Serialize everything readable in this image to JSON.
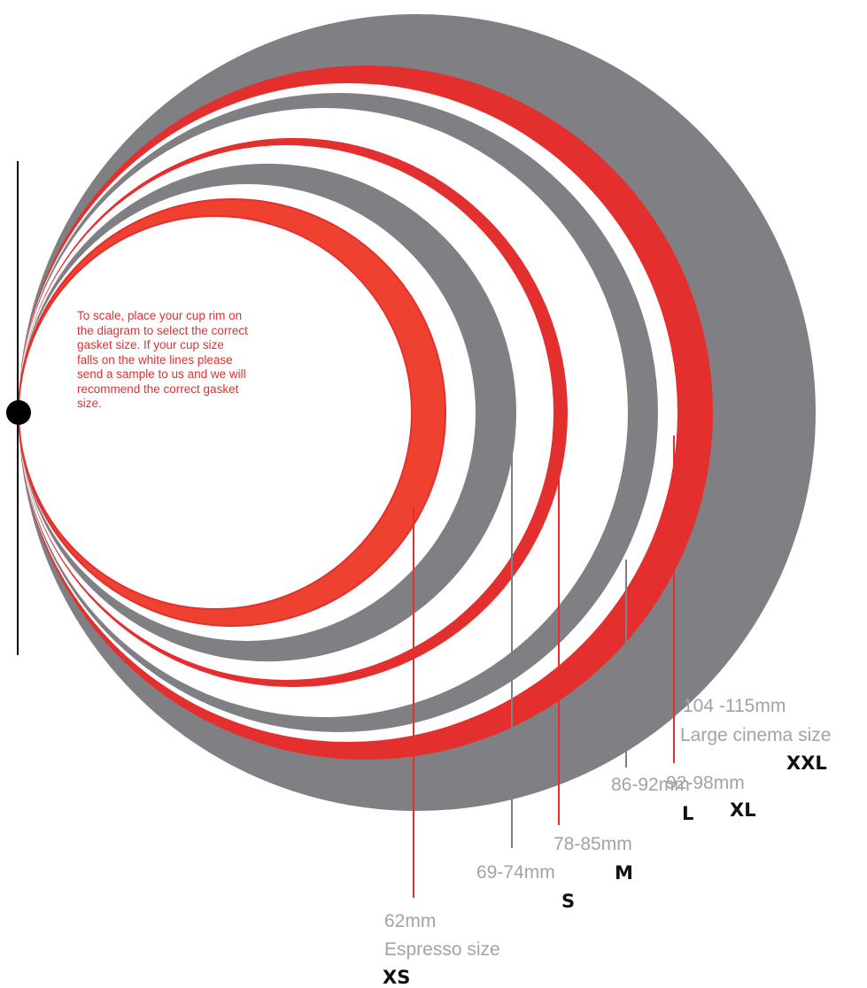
{
  "instructions": [
    "To scale, place your cup rim on",
    "the diagram to select the correct",
    "gasket size. If your cup size",
    "falls on the white lines please",
    "send a sample to us and we will",
    "recommend the correct gasket",
    "size."
  ],
  "sizes": [
    {
      "code": "XS",
      "range": "62mm",
      "description": "Espresso size",
      "color": "#ee4130"
    },
    {
      "code": "S",
      "range": "69-74mm",
      "description": "",
      "color": "#808084"
    },
    {
      "code": "M",
      "range": "78-85mm",
      "description": "",
      "color": "#e3302f"
    },
    {
      "code": "L",
      "range": "86-92mm",
      "description": "",
      "color": "#808084"
    },
    {
      "code": "XL",
      "range": "92-98mm",
      "description": "",
      "color": "#e3302f"
    },
    {
      "code": "XXL",
      "range": "104 -115mm",
      "description": "Large cinema size",
      "color": "#808084"
    }
  ],
  "colors": {
    "red": "#e3302f",
    "grey": "#808084",
    "orange": "#ee4130",
    "text_grey": "#a3a3a6"
  }
}
